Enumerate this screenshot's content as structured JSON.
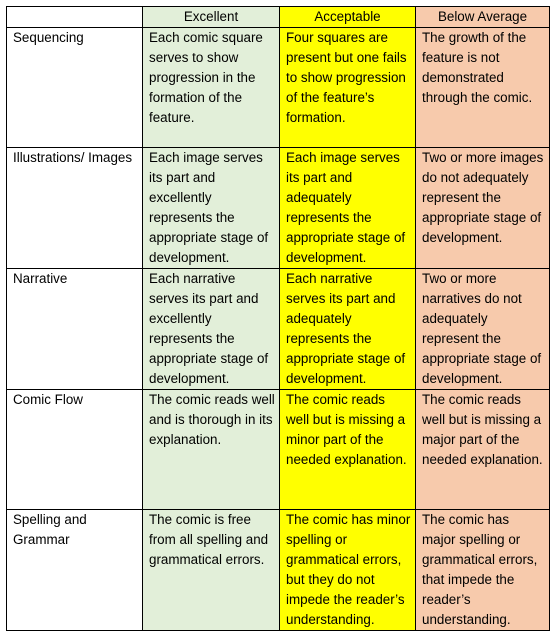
{
  "table": {
    "columns": [
      "Excellent",
      "Acceptable",
      "Below Average"
    ],
    "rows": [
      {
        "label": "Sequencing",
        "cells": [
          "Each comic square serves to show progression in the formation of the feature.",
          "Four squares are present but one fails to show progression of the feature’s formation.",
          "The growth of the feature is not demonstrated through the comic."
        ]
      },
      {
        "label": "Illustrations/ Images",
        "cells": [
          "Each image serves its part and excellently represents the appropriate stage of development.",
          "Each image serves its part and adequately represents the appropriate stage of development.",
          "Two or more images do not adequately represent the appropriate stage of development."
        ]
      },
      {
        "label": "Narrative",
        "cells": [
          "Each narrative serves its part and excellently represents the appropriate stage of development.",
          "Each narrative serves its part and adequately represents the appropriate stage of development.",
          "Two or more narratives do not adequately represent the appropriate stage of development."
        ]
      },
      {
        "label": "Comic Flow",
        "cells": [
          "The comic reads well and is thorough in its explanation.",
          "The comic reads well but is missing a minor part of the needed explanation.",
          "The comic reads well but is missing a major part of the needed explanation."
        ]
      },
      {
        "label": "Spelling and Grammar",
        "cells": [
          "The comic is free from all spelling and grammatical errors.",
          "The comic has minor spelling or grammatical errors, but they do not impede the reader’s understanding.",
          "The comic has major spelling or grammatical errors, that impede the reader’s understanding."
        ]
      }
    ]
  }
}
